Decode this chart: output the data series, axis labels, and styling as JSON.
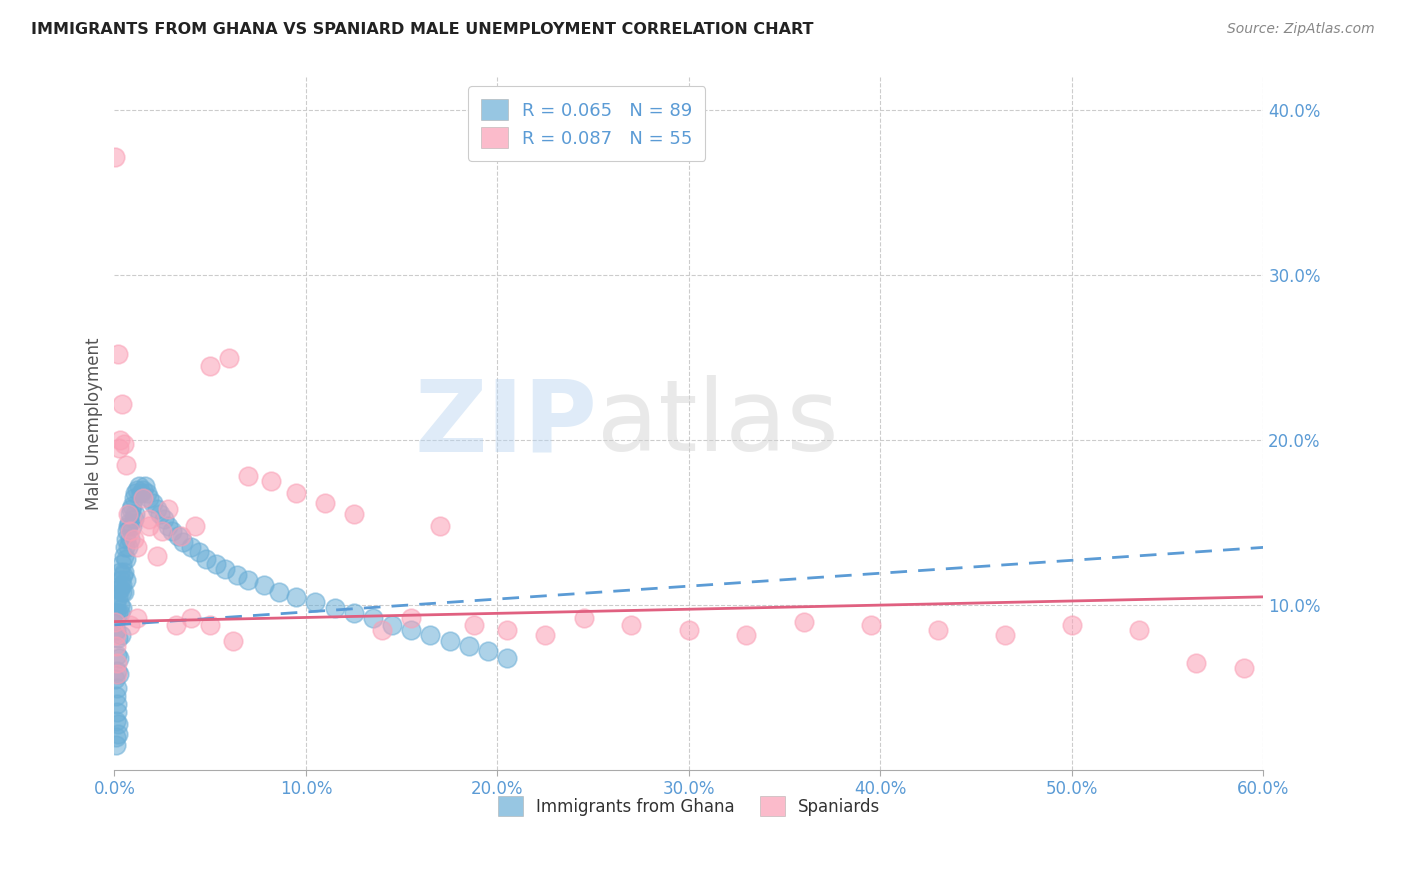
{
  "title": "IMMIGRANTS FROM GHANA VS SPANIARD MALE UNEMPLOYMENT CORRELATION CHART",
  "source": "Source: ZipAtlas.com",
  "ylabel": "Male Unemployment",
  "watermark_zip": "ZIP",
  "watermark_atlas": "atlas",
  "series1_label": "Immigrants from Ghana",
  "series1_color": "#6baed6",
  "series1_R": 0.065,
  "series1_N": 89,
  "series2_label": "Spaniards",
  "series2_color": "#fa9fb5",
  "series2_R": 0.087,
  "series2_N": 55,
  "xlim": [
    0.0,
    0.6
  ],
  "ylim": [
    0.0,
    0.42
  ],
  "xticks": [
    0.0,
    0.1,
    0.2,
    0.3,
    0.4,
    0.5,
    0.6
  ],
  "yticks_right": [
    0.1,
    0.2,
    0.3,
    0.4
  ],
  "background_color": "#ffffff",
  "grid_color": "#cccccc",
  "series1_x": [
    0.0003,
    0.0005,
    0.0006,
    0.0007,
    0.0008,
    0.0009,
    0.001,
    0.001,
    0.001,
    0.0012,
    0.0013,
    0.0014,
    0.0015,
    0.0016,
    0.0017,
    0.0018,
    0.002,
    0.002,
    0.002,
    0.0022,
    0.0024,
    0.0025,
    0.0027,
    0.003,
    0.003,
    0.003,
    0.0032,
    0.0035,
    0.004,
    0.004,
    0.004,
    0.0042,
    0.0045,
    0.005,
    0.005,
    0.005,
    0.0055,
    0.006,
    0.006,
    0.006,
    0.0065,
    0.007,
    0.007,
    0.0075,
    0.008,
    0.008,
    0.0085,
    0.009,
    0.009,
    0.01,
    0.01,
    0.011,
    0.011,
    0.012,
    0.013,
    0.014,
    0.015,
    0.016,
    0.017,
    0.018,
    0.02,
    0.022,
    0.024,
    0.026,
    0.028,
    0.03,
    0.033,
    0.036,
    0.04,
    0.044,
    0.048,
    0.053,
    0.058,
    0.064,
    0.07,
    0.078,
    0.086,
    0.095,
    0.105,
    0.115,
    0.125,
    0.135,
    0.145,
    0.155,
    0.165,
    0.175,
    0.185,
    0.195,
    0.205
  ],
  "series1_y": [
    0.09,
    0.055,
    0.045,
    0.03,
    0.02,
    0.015,
    0.095,
    0.1,
    0.085,
    0.07,
    0.06,
    0.05,
    0.04,
    0.035,
    0.028,
    0.022,
    0.105,
    0.095,
    0.08,
    0.068,
    0.058,
    0.11,
    0.1,
    0.12,
    0.11,
    0.095,
    0.082,
    0.115,
    0.125,
    0.112,
    0.098,
    0.108,
    0.118,
    0.13,
    0.12,
    0.108,
    0.135,
    0.14,
    0.128,
    0.115,
    0.145,
    0.148,
    0.135,
    0.15,
    0.155,
    0.14,
    0.158,
    0.16,
    0.148,
    0.165,
    0.152,
    0.168,
    0.155,
    0.17,
    0.172,
    0.168,
    0.17,
    0.172,
    0.168,
    0.165,
    0.162,
    0.158,
    0.155,
    0.152,
    0.148,
    0.145,
    0.142,
    0.138,
    0.135,
    0.132,
    0.128,
    0.125,
    0.122,
    0.118,
    0.115,
    0.112,
    0.108,
    0.105,
    0.102,
    0.098,
    0.095,
    0.092,
    0.088,
    0.085,
    0.082,
    0.078,
    0.075,
    0.072,
    0.068
  ],
  "series2_x": [
    0.0003,
    0.0005,
    0.0007,
    0.001,
    0.0012,
    0.0015,
    0.002,
    0.0025,
    0.003,
    0.004,
    0.005,
    0.006,
    0.007,
    0.008,
    0.01,
    0.012,
    0.015,
    0.018,
    0.022,
    0.028,
    0.035,
    0.042,
    0.05,
    0.06,
    0.07,
    0.082,
    0.095,
    0.11,
    0.125,
    0.14,
    0.155,
    0.17,
    0.188,
    0.205,
    0.225,
    0.245,
    0.27,
    0.3,
    0.33,
    0.36,
    0.395,
    0.43,
    0.465,
    0.5,
    0.535,
    0.565,
    0.59,
    0.008,
    0.012,
    0.018,
    0.025,
    0.032,
    0.04,
    0.05,
    0.062
  ],
  "series2_y": [
    0.372,
    0.09,
    0.082,
    0.075,
    0.065,
    0.058,
    0.252,
    0.195,
    0.2,
    0.222,
    0.198,
    0.185,
    0.155,
    0.145,
    0.14,
    0.135,
    0.165,
    0.148,
    0.13,
    0.158,
    0.142,
    0.148,
    0.245,
    0.25,
    0.178,
    0.175,
    0.168,
    0.162,
    0.155,
    0.085,
    0.092,
    0.148,
    0.088,
    0.085,
    0.082,
    0.092,
    0.088,
    0.085,
    0.082,
    0.09,
    0.088,
    0.085,
    0.082,
    0.088,
    0.085,
    0.065,
    0.062,
    0.088,
    0.092,
    0.152,
    0.145,
    0.088,
    0.092,
    0.088,
    0.078
  ]
}
